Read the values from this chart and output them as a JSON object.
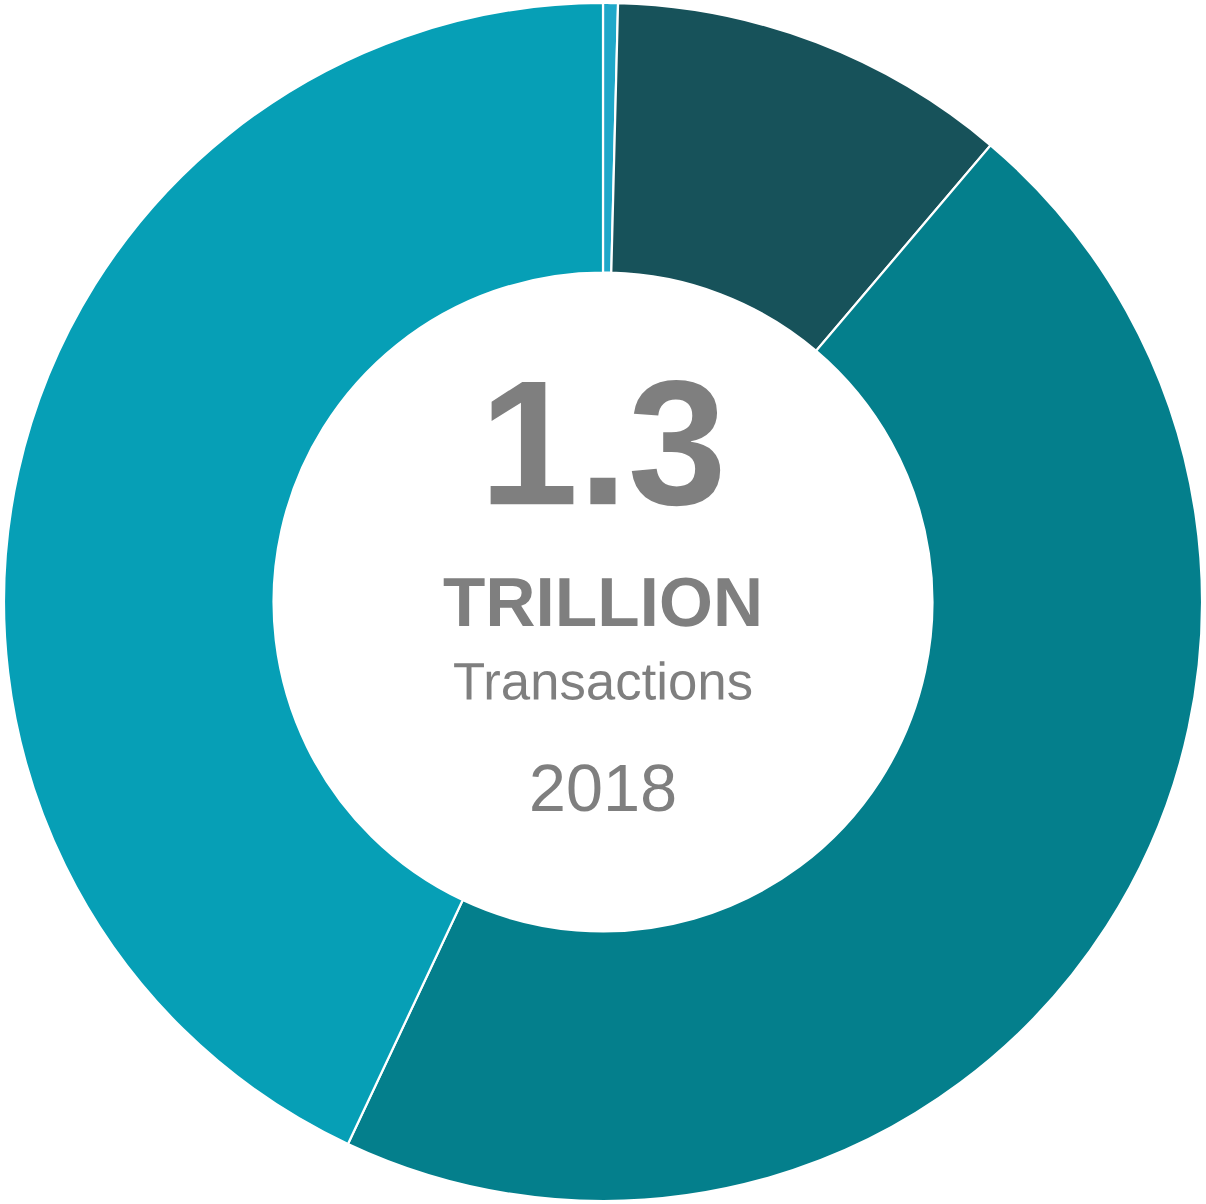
{
  "chart_data": {
    "type": "donut",
    "categories": [
      null,
      null,
      null,
      null
    ],
    "values": [
      0.4,
      10.8,
      45.8,
      43.0
    ],
    "colors": [
      "#1fa8c9",
      "#17525a",
      "#047f8c",
      "#069fb6"
    ],
    "annotations": [
      "1.3",
      "TRILLION",
      "Transactions",
      "2018"
    ]
  }
}
